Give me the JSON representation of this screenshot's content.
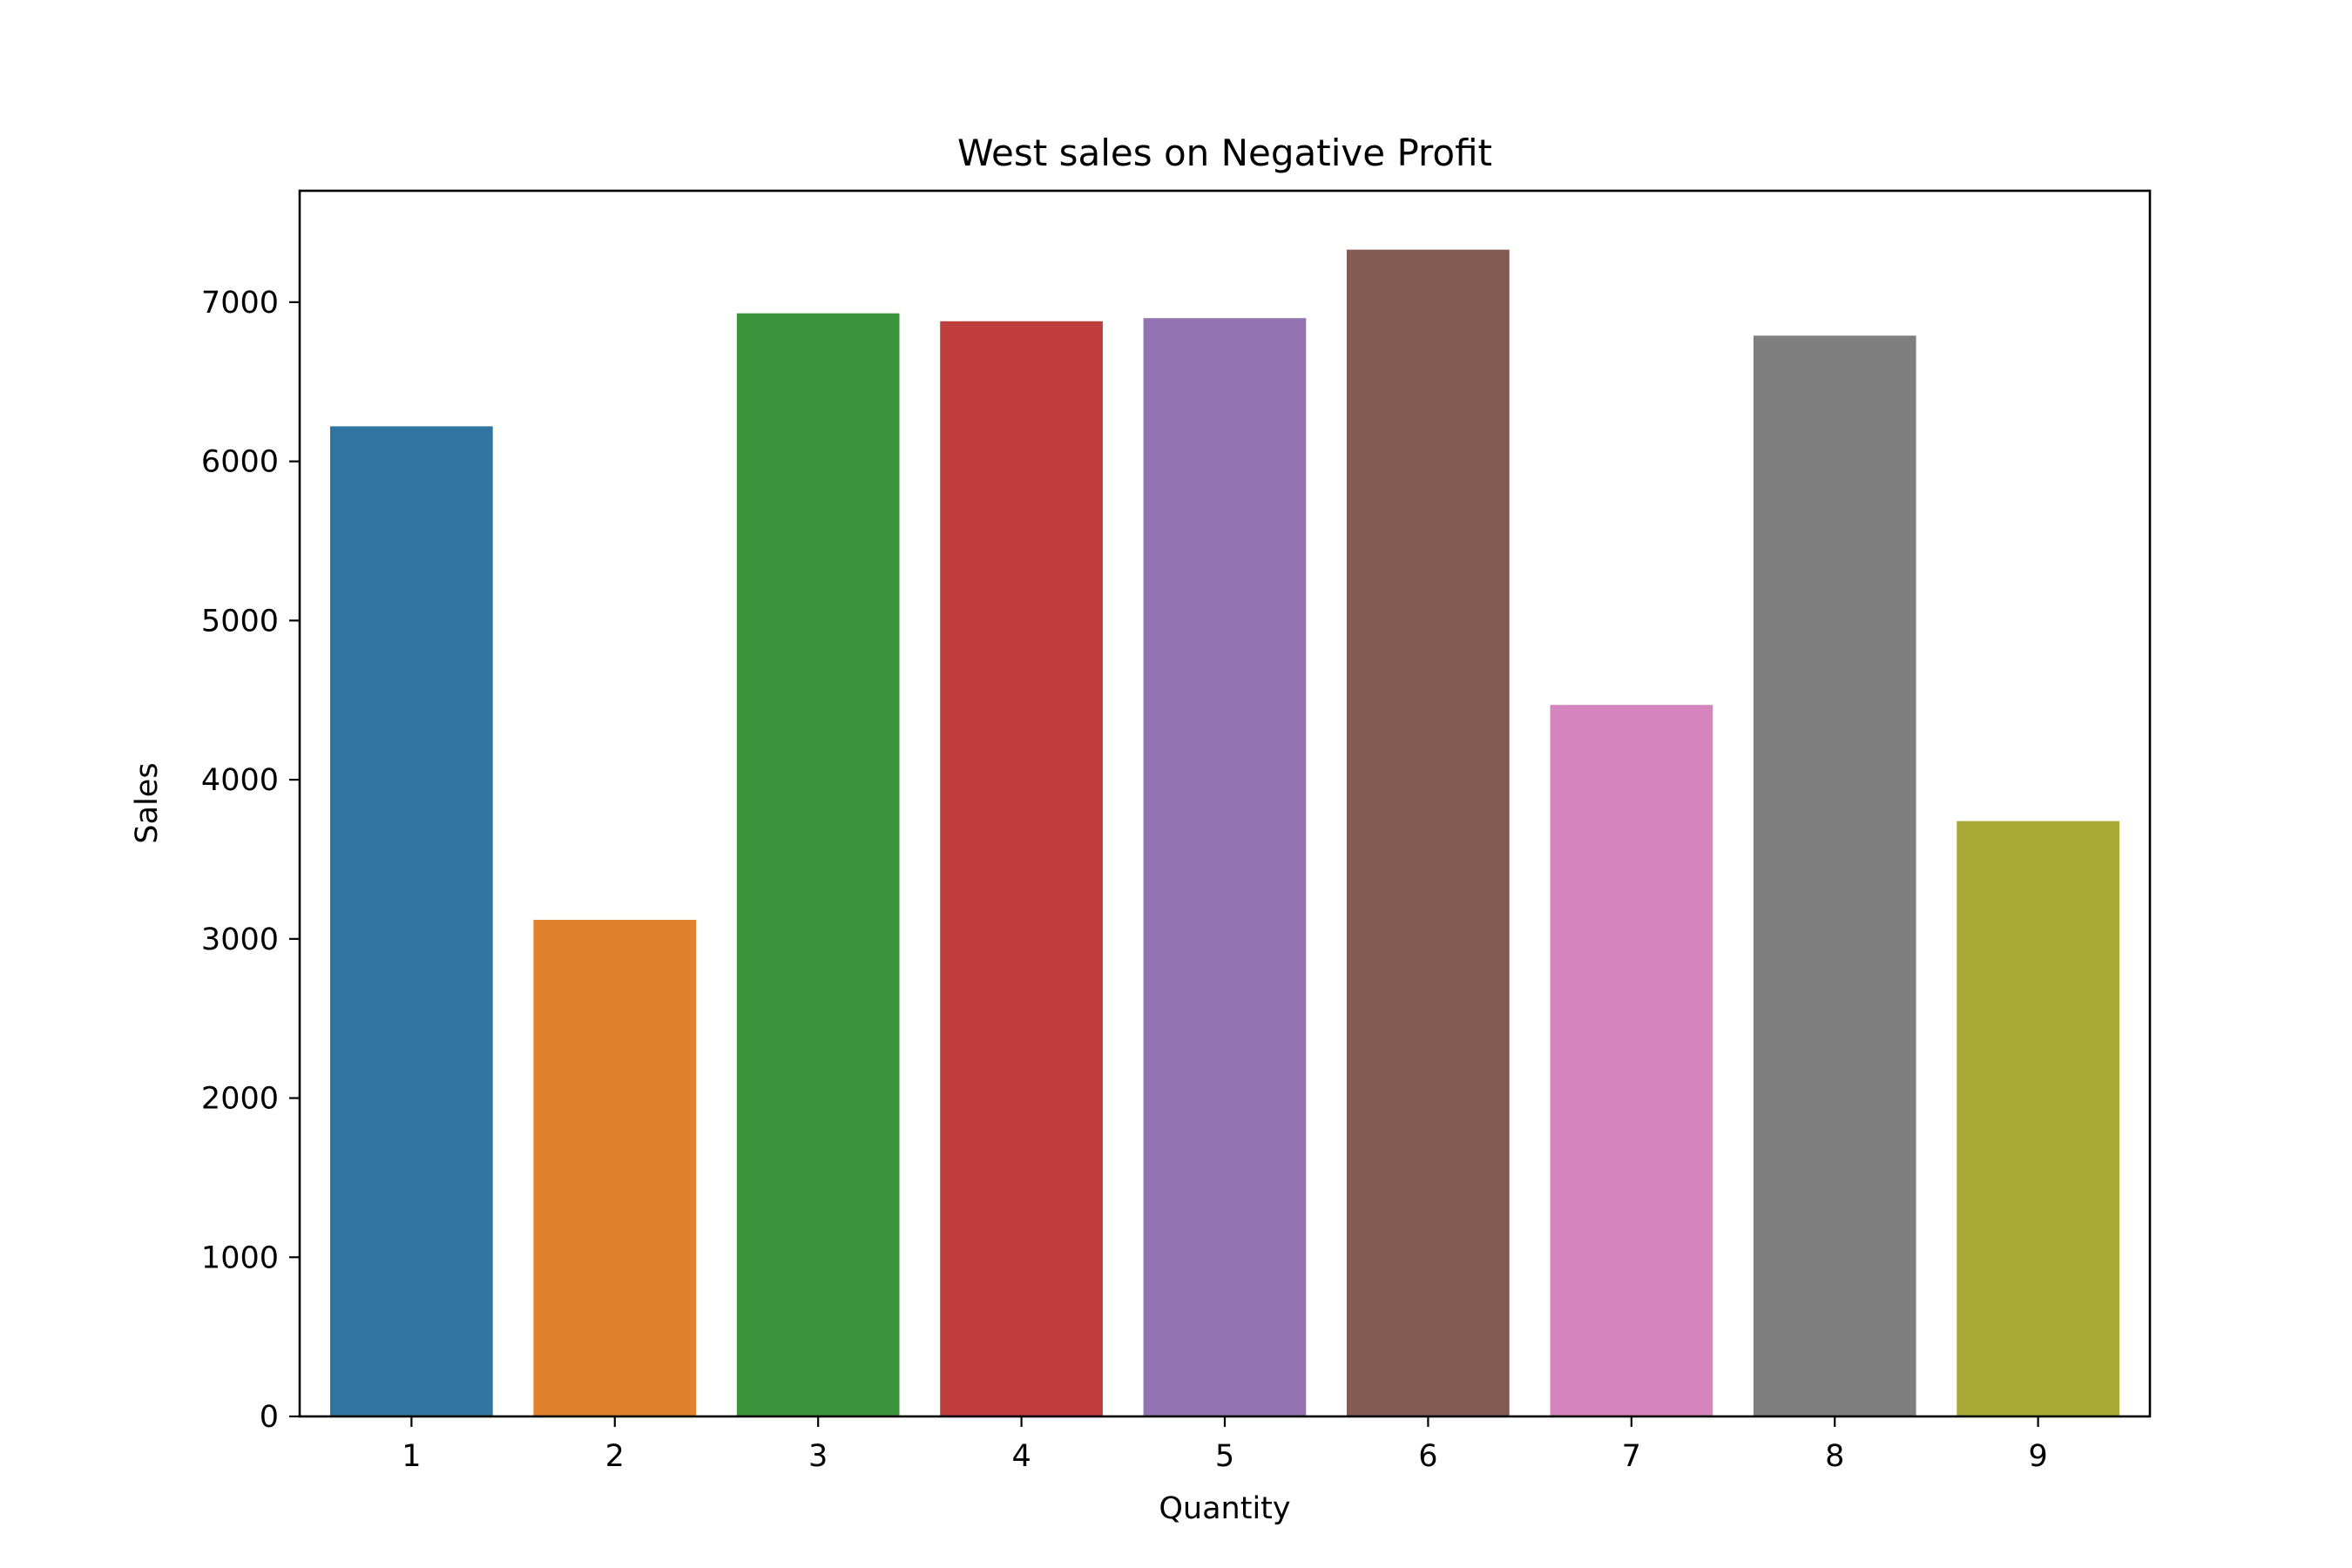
{
  "chart_data": {
    "type": "bar",
    "title": "West sales on Negative Profit",
    "xlabel": "Quantity",
    "ylabel": "Sales",
    "categories": [
      "1",
      "2",
      "3",
      "4",
      "5",
      "6",
      "7",
      "8",
      "9"
    ],
    "values": [
      6220,
      3120,
      6930,
      6880,
      6900,
      7330,
      4470,
      6790,
      3740
    ],
    "colors": [
      "#3274a1",
      "#e1812c",
      "#3a923a",
      "#c03d3e",
      "#9372b2",
      "#845b53",
      "#d684bd",
      "#7f7f7f",
      "#a9aa35"
    ],
    "ylim": [
      0,
      7700
    ],
    "yticks": [
      0,
      1000,
      2000,
      3000,
      4000,
      5000,
      6000,
      7000
    ],
    "ytick_labels": [
      "0",
      "1000",
      "2000",
      "3000",
      "4000",
      "5000",
      "6000",
      "7000"
    ],
    "grid": false,
    "legend": false
  }
}
